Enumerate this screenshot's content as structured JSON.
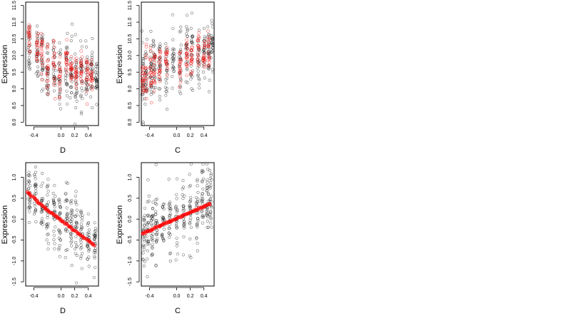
{
  "figure": {
    "panels": 4,
    "colors": {
      "observed": "#000000",
      "fitted": "#ff0000"
    }
  },
  "chart_data": [
    {
      "type": "scatter",
      "title": "",
      "xlabel": "D",
      "ylabel": "Expression",
      "xlim": [
        -0.52,
        0.55
      ],
      "ylim": [
        7.9,
        11.6
      ],
      "xticks": [
        -0.4,
        0.0,
        0.2,
        0.4
      ],
      "xtick_labels": [
        "-0.4",
        "0.0",
        "0.2",
        "0.4"
      ],
      "yticks": [
        8.0,
        8.5,
        9.0,
        9.5,
        10.0,
        10.5,
        11.0,
        11.5
      ],
      "ytick_labels": [
        "8.0",
        "8.5",
        "9.0",
        "9.5",
        "10.0",
        "10.5",
        "11.0",
        "11.5"
      ],
      "grid": false,
      "legend": "none",
      "observed_groups": [
        {
          "x": -0.47,
          "center": 10.3,
          "spread": 0.45
        },
        {
          "x": -0.35,
          "center": 10.2,
          "spread": 0.45
        },
        {
          "x": -0.28,
          "center": 9.9,
          "spread": 0.4
        },
        {
          "x": -0.2,
          "center": 9.5,
          "spread": 0.45
        },
        {
          "x": -0.1,
          "center": 9.5,
          "spread": 0.45
        },
        {
          "x": -0.02,
          "center": 9.4,
          "spread": 0.45
        },
        {
          "x": 0.08,
          "center": 9.7,
          "spread": 0.5
        },
        {
          "x": 0.15,
          "center": 9.5,
          "spread": 0.5
        },
        {
          "x": 0.22,
          "center": 9.3,
          "spread": 0.5
        },
        {
          "x": 0.3,
          "center": 9.4,
          "spread": 0.45
        },
        {
          "x": 0.38,
          "center": 9.35,
          "spread": 0.4
        },
        {
          "x": 0.45,
          "center": 9.4,
          "spread": 0.4
        },
        {
          "x": 0.52,
          "center": 9.4,
          "spread": 0.3
        }
      ],
      "fitted_groups": [
        {
          "x": -0.47,
          "center": 10.4,
          "spread": 0.3
        },
        {
          "x": -0.35,
          "center": 10.2,
          "spread": 0.3
        },
        {
          "x": -0.28,
          "center": 10.0,
          "spread": 0.3
        },
        {
          "x": -0.2,
          "center": 9.6,
          "spread": 0.35
        },
        {
          "x": -0.1,
          "center": 9.6,
          "spread": 0.35
        },
        {
          "x": -0.02,
          "center": 9.3,
          "spread": 0.3
        },
        {
          "x": 0.08,
          "center": 9.9,
          "spread": 0.3
        },
        {
          "x": 0.15,
          "center": 9.6,
          "spread": 0.3
        },
        {
          "x": 0.22,
          "center": 9.5,
          "spread": 0.3
        },
        {
          "x": 0.3,
          "center": 9.5,
          "spread": 0.3
        },
        {
          "x": 0.38,
          "center": 9.4,
          "spread": 0.3
        },
        {
          "x": 0.45,
          "center": 9.35,
          "spread": 0.25
        }
      ]
    },
    {
      "type": "scatter",
      "title": "",
      "xlabel": "C",
      "ylabel": "Expression",
      "xlim": [
        -0.52,
        0.55
      ],
      "ylim": [
        7.9,
        11.6
      ],
      "xticks": [
        -0.4,
        0.0,
        0.2,
        0.4
      ],
      "xtick_labels": [
        "-0.4",
        "0.0",
        "0.2",
        "0.4"
      ],
      "yticks": [
        8.0,
        8.5,
        9.0,
        9.5,
        10.0,
        10.5,
        11.0,
        11.5
      ],
      "ytick_labels": [
        "8.0",
        "8.5",
        "9.0",
        "9.5",
        "10.0",
        "10.5",
        "11.0",
        "11.5"
      ],
      "grid": false,
      "legend": "none",
      "observed_groups": [
        {
          "x": -0.5,
          "center": 9.2,
          "spread": 0.5
        },
        {
          "x": -0.45,
          "center": 9.4,
          "spread": 0.45
        },
        {
          "x": -0.38,
          "center": 9.6,
          "spread": 0.45
        },
        {
          "x": -0.33,
          "center": 9.7,
          "spread": 0.45
        },
        {
          "x": -0.25,
          "center": 9.6,
          "spread": 0.45
        },
        {
          "x": -0.15,
          "center": 9.6,
          "spread": 0.5
        },
        {
          "x": -0.05,
          "center": 9.8,
          "spread": 0.45
        },
        {
          "x": 0.05,
          "center": 9.8,
          "spread": 0.45
        },
        {
          "x": 0.15,
          "center": 10.1,
          "spread": 0.5
        },
        {
          "x": 0.22,
          "center": 10.0,
          "spread": 0.5
        },
        {
          "x": 0.32,
          "center": 9.9,
          "spread": 0.5
        },
        {
          "x": 0.4,
          "center": 10.1,
          "spread": 0.45
        },
        {
          "x": 0.47,
          "center": 10.2,
          "spread": 0.45
        },
        {
          "x": 0.52,
          "center": 10.3,
          "spread": 0.4
        }
      ],
      "fitted_groups": [
        {
          "x": -0.5,
          "center": 9.3,
          "spread": 0.35
        },
        {
          "x": -0.45,
          "center": 9.5,
          "spread": 0.35
        },
        {
          "x": -0.38,
          "center": 9.5,
          "spread": 0.35
        },
        {
          "x": -0.33,
          "center": 9.6,
          "spread": 0.35
        },
        {
          "x": -0.25,
          "center": 9.7,
          "spread": 0.35
        },
        {
          "x": -0.15,
          "center": 9.7,
          "spread": 0.3
        },
        {
          "x": 0.05,
          "center": 9.6,
          "spread": 0.3
        },
        {
          "x": 0.15,
          "center": 9.8,
          "spread": 0.3
        },
        {
          "x": 0.22,
          "center": 9.9,
          "spread": 0.3
        },
        {
          "x": 0.32,
          "center": 10.2,
          "spread": 0.3
        },
        {
          "x": 0.4,
          "center": 10.0,
          "spread": 0.3
        },
        {
          "x": 0.47,
          "center": 10.2,
          "spread": 0.25
        }
      ]
    },
    {
      "type": "scatter",
      "title": "",
      "xlabel": "D",
      "ylabel": "Expression",
      "xlim": [
        -0.52,
        0.55
      ],
      "ylim": [
        -1.6,
        1.35
      ],
      "xticks": [
        -0.4,
        0.0,
        0.2,
        0.4
      ],
      "xtick_labels": [
        "-0.4",
        "0.0",
        "0.2",
        "0.4"
      ],
      "yticks": [
        -1.5,
        -1.0,
        -0.5,
        0.0,
        0.5,
        1.0
      ],
      "ytick_labels": [
        "-1.5",
        "-1.0",
        "-0.5",
        "0.0",
        "0.5",
        "1.0"
      ],
      "grid": false,
      "legend": "none",
      "observed_groups": [
        {
          "x": -0.47,
          "center": 0.55,
          "spread": 0.35
        },
        {
          "x": -0.38,
          "center": 0.45,
          "spread": 0.35
        },
        {
          "x": -0.28,
          "center": 0.3,
          "spread": 0.35
        },
        {
          "x": -0.2,
          "center": 0.2,
          "spread": 0.35
        },
        {
          "x": -0.1,
          "center": 0.05,
          "spread": 0.4
        },
        {
          "x": -0.02,
          "center": -0.05,
          "spread": 0.4
        },
        {
          "x": 0.08,
          "center": 0.0,
          "spread": 0.4
        },
        {
          "x": 0.15,
          "center": -0.15,
          "spread": 0.4
        },
        {
          "x": 0.22,
          "center": -0.35,
          "spread": 0.45
        },
        {
          "x": 0.3,
          "center": -0.4,
          "spread": 0.35
        },
        {
          "x": 0.4,
          "center": -0.5,
          "spread": 0.3
        },
        {
          "x": 0.5,
          "center": -0.55,
          "spread": 0.3
        }
      ],
      "fitted_line": {
        "x": [
          -0.5,
          -0.4,
          -0.3,
          -0.2,
          -0.1,
          0.0,
          0.1,
          0.2,
          0.3,
          0.4,
          0.5
        ],
        "y": [
          0.65,
          0.5,
          0.35,
          0.22,
          0.1,
          -0.02,
          -0.15,
          -0.28,
          -0.4,
          -0.52,
          -0.63
        ]
      }
    },
    {
      "type": "scatter",
      "title": "",
      "xlabel": "C",
      "ylabel": "Expression",
      "xlim": [
        -0.52,
        0.55
      ],
      "ylim": [
        -1.6,
        1.35
      ],
      "xticks": [
        -0.4,
        0.0,
        0.2,
        0.4
      ],
      "xtick_labels": [
        "-0.4",
        "0.0",
        "0.2",
        "0.4"
      ],
      "yticks": [
        -1.5,
        -1.0,
        -0.5,
        0.0,
        0.5,
        1.0
      ],
      "ytick_labels": [
        "-1.5",
        "-1.0",
        "-0.5",
        "0.0",
        "0.5",
        "1.0"
      ],
      "grid": false,
      "legend": "none",
      "observed_groups": [
        {
          "x": -0.48,
          "center": -0.4,
          "spread": 0.45
        },
        {
          "x": -0.42,
          "center": -0.3,
          "spread": 0.45
        },
        {
          "x": -0.36,
          "center": -0.25,
          "spread": 0.45
        },
        {
          "x": -0.3,
          "center": -0.2,
          "spread": 0.45
        },
        {
          "x": -0.2,
          "center": -0.1,
          "spread": 0.4
        },
        {
          "x": -0.1,
          "center": -0.05,
          "spread": 0.4
        },
        {
          "x": 0.0,
          "center": 0.0,
          "spread": 0.4
        },
        {
          "x": 0.1,
          "center": 0.1,
          "spread": 0.4
        },
        {
          "x": 0.2,
          "center": 0.15,
          "spread": 0.4
        },
        {
          "x": 0.3,
          "center": 0.2,
          "spread": 0.45
        },
        {
          "x": 0.38,
          "center": 0.3,
          "spread": 0.45
        },
        {
          "x": 0.45,
          "center": 0.35,
          "spread": 0.45
        },
        {
          "x": 0.5,
          "center": 0.4,
          "spread": 0.4
        }
      ],
      "fitted_line": {
        "x": [
          -0.5,
          -0.4,
          -0.3,
          -0.2,
          -0.1,
          0.0,
          0.1,
          0.2,
          0.3,
          0.4,
          0.5
        ],
        "y": [
          -0.35,
          -0.28,
          -0.2,
          -0.13,
          -0.06,
          0.02,
          0.09,
          0.16,
          0.23,
          0.3,
          0.37
        ]
      }
    }
  ]
}
